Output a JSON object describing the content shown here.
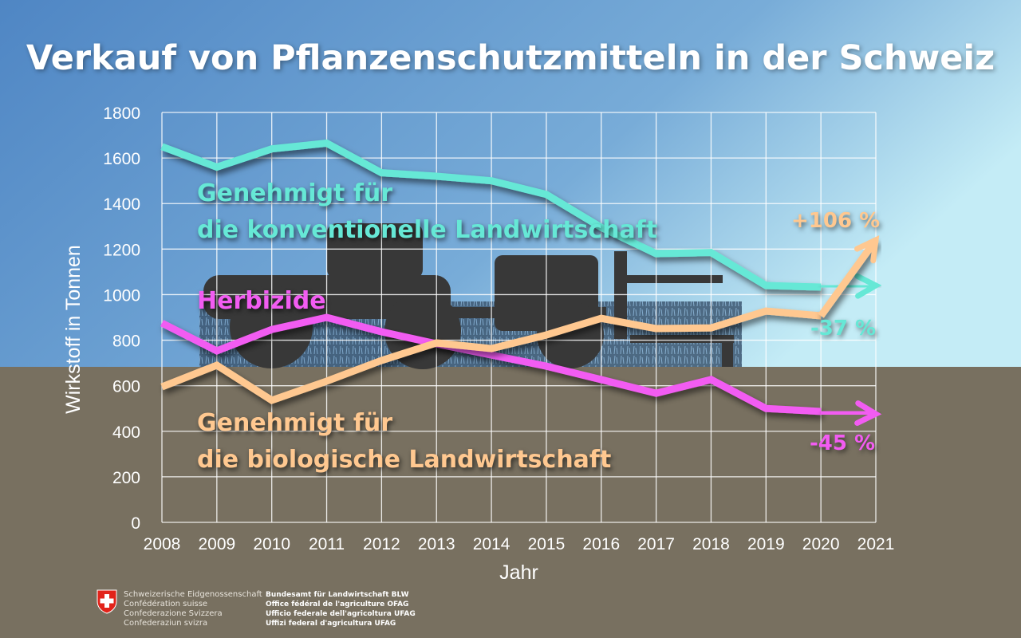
{
  "chart_data": {
    "type": "line",
    "title": "Verkauf von Pflanzenschutzmitteln in der Schweiz",
    "xlabel": "Jahr",
    "ylabel": "Wirkstoff in Tonnen",
    "xlim": [
      2008,
      2021
    ],
    "ylim": [
      0,
      1800
    ],
    "x_ticks": [
      "2008",
      "2009",
      "2010",
      "2011",
      "2012",
      "2013",
      "2014",
      "2015",
      "2016",
      "2017",
      "2018",
      "2019",
      "2020",
      "2021"
    ],
    "y_ticks": [
      "0",
      "200",
      "400",
      "600",
      "800",
      "1000",
      "1200",
      "1400",
      "1600",
      "1800"
    ],
    "grid": true,
    "x": [
      2008,
      2009,
      2010,
      2011,
      2012,
      2013,
      2014,
      2015,
      2016,
      2017,
      2018,
      2019,
      2020
    ],
    "series": [
      {
        "name": "Genehmigt für die konventionelle Landwirtschaft",
        "label_line1": "Genehmigt für",
        "label_line2": "die konventionelle Landwirtschaft",
        "color": "#66e8d6",
        "values": [
          1650,
          1560,
          1640,
          1665,
          1535,
          1520,
          1500,
          1440,
          1295,
          1180,
          1185,
          1040,
          1033
        ],
        "trend_end": [
          2021,
          1040
        ],
        "change": "-37 %"
      },
      {
        "name": "Herbizide",
        "label_line1": "Herbizide",
        "color": "#f25cf2",
        "values": [
          875,
          753,
          847,
          900,
          837,
          784,
          735,
          686,
          627,
          567,
          627,
          500,
          487
        ],
        "trend_end": [
          2021,
          476
        ],
        "change": "-45 %"
      },
      {
        "name": "Genehmigt für die biologische Landwirtschaft",
        "label_line1": "Genehmigt für",
        "label_line2": "die biologische Landwirtschaft",
        "color": "#ffc890",
        "values": [
          595,
          690,
          536,
          620,
          711,
          788,
          763,
          823,
          896,
          851,
          854,
          928,
          907
        ],
        "trend_end": [
          2021,
          1240
        ],
        "change": "+106 %"
      }
    ]
  },
  "footer": {
    "confederation": [
      "Schweizerische Eidgenossenschaft",
      "Confédération suisse",
      "Confederazione Svizzera",
      "Confederaziun svizra"
    ],
    "office": [
      "Bundesamt für Landwirtschaft BLW",
      "Office fédéral de l'agriculture OFAG",
      "Ufficio federale dell'agricoltura UFAG",
      "Uffizi federal d'agricultura UFAG"
    ]
  }
}
